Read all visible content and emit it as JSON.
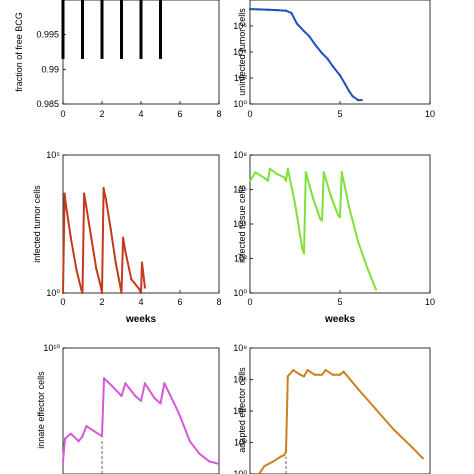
{
  "chart_data": [
    {
      "type": "scatter",
      "ylabel": "fraction of free BCG",
      "xlabel": "",
      "xlim": [
        0,
        8
      ],
      "ylim": [
        0.985,
        1.0
      ],
      "xticks": [
        "0",
        "2",
        "4",
        "6",
        "8"
      ],
      "yticks": [
        "0.985",
        "0.99",
        "0.995"
      ],
      "color": "#000000",
      "series": [
        {
          "bars": [
            {
              "x": 0.0,
              "y0": 0.9915,
              "y1": 1.0
            },
            {
              "x": 1.0,
              "y0": 0.9915,
              "y1": 1.0
            },
            {
              "x": 2.0,
              "y0": 0.9915,
              "y1": 1.0
            },
            {
              "x": 3.0,
              "y0": 0.9915,
              "y1": 1.0
            },
            {
              "x": 4.0,
              "y0": 0.9915,
              "y1": 1.0
            },
            {
              "x": 5.0,
              "y0": 0.9915,
              "y1": 1.0
            }
          ]
        }
      ]
    },
    {
      "type": "line",
      "ylabel": "uninfected tumor cells",
      "xlabel": "",
      "xlim": [
        0,
        10
      ],
      "ylim_log10": [
        0,
        8
      ],
      "xticks": [
        "0",
        "5",
        "10"
      ],
      "yticks": [
        "10⁰",
        "10²",
        "10⁴",
        "10⁶"
      ],
      "color": "#1f4fbf",
      "series": [
        {
          "points": [
            [
              0,
              7.3
            ],
            [
              0.5,
              7.28
            ],
            [
              1.0,
              7.25
            ],
            [
              1.5,
              7.22
            ],
            [
              2.0,
              7.18
            ],
            [
              2.3,
              7.0
            ],
            [
              2.6,
              6.2
            ],
            [
              3.0,
              5.6
            ],
            [
              3.3,
              5.2
            ],
            [
              3.6,
              4.6
            ],
            [
              4.0,
              3.9
            ],
            [
              4.3,
              3.5
            ],
            [
              4.6,
              2.9
            ],
            [
              5.0,
              2.2
            ],
            [
              5.3,
              1.5
            ],
            [
              5.5,
              1.0
            ],
            [
              5.7,
              0.6
            ],
            [
              6.0,
              0.3
            ],
            [
              6.2,
              0.3
            ]
          ]
        }
      ]
    },
    {
      "type": "line",
      "ylabel": "infected tumor cells",
      "xlabel": "weeks",
      "xlim": [
        0,
        8
      ],
      "ylim_log10": [
        0,
        5
      ],
      "xticks": [
        "0",
        "2",
        "4",
        "6",
        "8"
      ],
      "yticks": [
        "10⁰",
        "10⁵"
      ],
      "color": "#c23b1e",
      "series": [
        {
          "points": [
            [
              0,
              0
            ],
            [
              0.08,
              3.6
            ],
            [
              0.15,
              3.2
            ],
            [
              0.4,
              2.0
            ],
            [
              0.7,
              0.8
            ],
            [
              0.95,
              0.1
            ],
            [
              1.0,
              0
            ],
            [
              1.08,
              3.6
            ],
            [
              1.2,
              3.1
            ],
            [
              1.45,
              2.0
            ],
            [
              1.7,
              0.9
            ],
            [
              1.95,
              0.2
            ],
            [
              2.0,
              0
            ],
            [
              2.08,
              3.8
            ],
            [
              2.2,
              3.4
            ],
            [
              2.45,
              2.3
            ],
            [
              2.7,
              1.1
            ],
            [
              2.95,
              0.2
            ],
            [
              3.0,
              0
            ],
            [
              3.08,
              2.0
            ],
            [
              3.2,
              1.5
            ],
            [
              3.5,
              0.5
            ],
            [
              3.9,
              0.15
            ],
            [
              4.0,
              0
            ],
            [
              4.05,
              1.1
            ],
            [
              4.2,
              0.2
            ]
          ]
        }
      ]
    },
    {
      "type": "line",
      "ylabel": "infected tissue cells",
      "xlabel": "weeks",
      "xlim": [
        0,
        10
      ],
      "ylim_log10": [
        0,
        8
      ],
      "xticks": [
        "0",
        "5",
        "10"
      ],
      "yticks": [
        "10⁰",
        "10²",
        "10⁴",
        "10⁶",
        "10⁸"
      ],
      "color": "#7fe03a",
      "series": [
        {
          "points": [
            [
              0,
              6.5
            ],
            [
              0.3,
              7.0
            ],
            [
              0.6,
              6.8
            ],
            [
              0.9,
              6.6
            ],
            [
              1.0,
              6.5
            ],
            [
              1.1,
              7.2
            ],
            [
              1.5,
              6.9
            ],
            [
              1.9,
              6.7
            ],
            [
              2.0,
              6.5
            ],
            [
              2.1,
              7.2
            ],
            [
              2.5,
              5.2
            ],
            [
              2.9,
              2.6
            ],
            [
              3.0,
              2.3
            ],
            [
              3.1,
              7.0
            ],
            [
              3.5,
              5.5
            ],
            [
              3.9,
              4.3
            ],
            [
              4.0,
              4.2
            ],
            [
              4.1,
              7.0
            ],
            [
              4.5,
              5.6
            ],
            [
              4.9,
              4.5
            ],
            [
              5.0,
              4.4
            ],
            [
              5.1,
              7.0
            ],
            [
              5.5,
              5.0
            ],
            [
              6.0,
              3.0
            ],
            [
              6.5,
              1.5
            ],
            [
              7.0,
              0.2
            ]
          ]
        }
      ]
    },
    {
      "type": "line",
      "ylabel": "innate effector cells",
      "xlabel": "",
      "xlim": [
        0,
        8
      ],
      "ylim_log10": [
        5,
        10
      ],
      "xticks": [],
      "yticks": [
        "10¹⁰"
      ],
      "color": "#d35ad8",
      "dashed_marker": {
        "x": 2.0,
        "y_from": 5.0,
        "y_to": 6.4
      },
      "series": [
        {
          "points": [
            [
              0,
              5.5
            ],
            [
              0.1,
              6.4
            ],
            [
              0.4,
              6.6
            ],
            [
              0.8,
              6.3
            ],
            [
              1.0,
              6.5
            ],
            [
              1.2,
              6.9
            ],
            [
              1.6,
              6.7
            ],
            [
              2.0,
              6.5
            ],
            [
              2.1,
              8.8
            ],
            [
              2.5,
              8.5
            ],
            [
              3.0,
              8.1
            ],
            [
              3.2,
              8.6
            ],
            [
              3.7,
              8.1
            ],
            [
              4.0,
              7.9
            ],
            [
              4.2,
              8.6
            ],
            [
              4.7,
              8.0
            ],
            [
              5.0,
              7.8
            ],
            [
              5.2,
              8.6
            ],
            [
              5.7,
              7.8
            ],
            [
              6.0,
              7.3
            ],
            [
              6.5,
              6.3
            ],
            [
              7.0,
              5.8
            ],
            [
              7.5,
              5.5
            ],
            [
              8.0,
              5.4
            ]
          ]
        }
      ]
    },
    {
      "type": "line",
      "ylabel": "adapted effector cells",
      "xlabel": "",
      "xlim": [
        0,
        10
      ],
      "ylim_log10": [
        0,
        8
      ],
      "xticks": [],
      "yticks": [
        "10⁰",
        "10²",
        "10⁴",
        "10⁶",
        "10⁸"
      ],
      "color": "#c8821f",
      "dashed_marker": {
        "x": 2.0,
        "y_from": 0.0,
        "y_to": 1.1
      },
      "series": [
        {
          "points": [
            [
              0.5,
              0.0
            ],
            [
              0.8,
              0.5
            ],
            [
              1.3,
              0.8
            ],
            [
              1.7,
              1.1
            ],
            [
              1.9,
              1.2
            ],
            [
              2.0,
              1.4
            ],
            [
              2.1,
              6.2
            ],
            [
              2.4,
              6.6
            ],
            [
              2.8,
              6.3
            ],
            [
              3.0,
              6.2
            ],
            [
              3.2,
              6.6
            ],
            [
              3.6,
              6.3
            ],
            [
              4.0,
              6.3
            ],
            [
              4.2,
              6.6
            ],
            [
              4.6,
              6.3
            ],
            [
              5.0,
              6.3
            ],
            [
              5.2,
              6.5
            ],
            [
              6.0,
              5.4
            ],
            [
              7.0,
              4.1
            ],
            [
              8.0,
              2.8
            ],
            [
              9.0,
              1.7
            ],
            [
              9.6,
              1.0
            ]
          ]
        }
      ]
    }
  ]
}
